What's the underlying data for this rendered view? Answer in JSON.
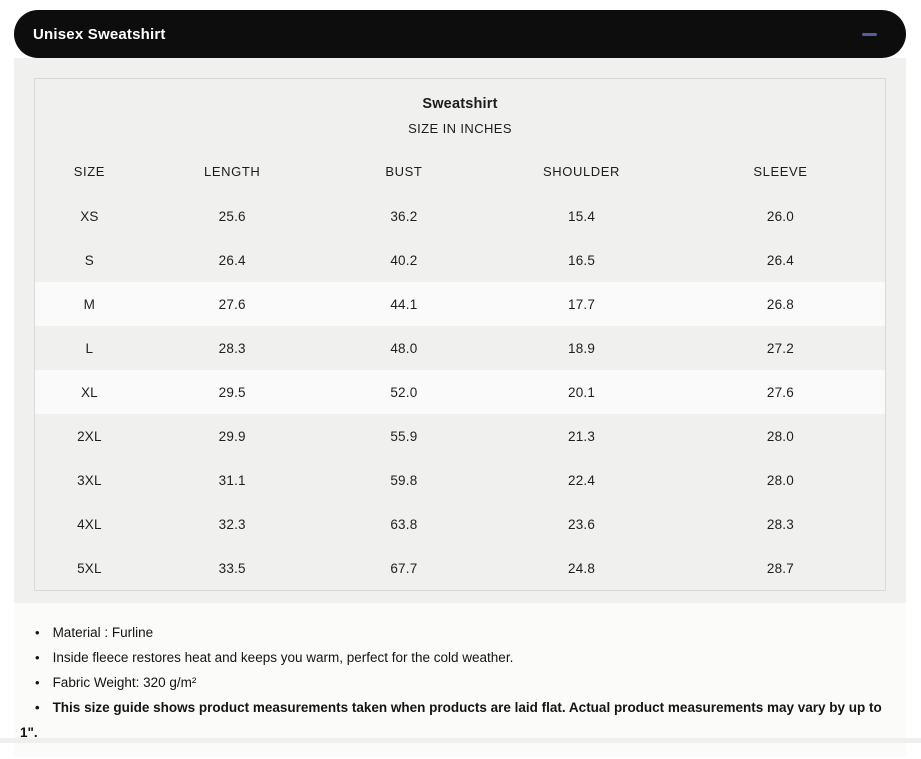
{
  "accordion": {
    "title": "Unisex Sweatshirt"
  },
  "icons": {
    "collapse": "minus-icon"
  },
  "size_chart": {
    "title": "Sweatshirt",
    "subtitle": "SIZE IN INCHES",
    "columns": [
      "SIZE",
      "LENGTH",
      "BUST",
      "SHOULDER",
      "SLEEVE"
    ],
    "rows": [
      {
        "cells": [
          "XS",
          "25.6",
          "36.2",
          "15.4",
          "26.0"
        ],
        "highlighted": false
      },
      {
        "cells": [
          "S",
          "26.4",
          "40.2",
          "16.5",
          "26.4"
        ],
        "highlighted": false
      },
      {
        "cells": [
          "M",
          "27.6",
          "44.1",
          "17.7",
          "26.8"
        ],
        "highlighted": true
      },
      {
        "cells": [
          "L",
          "28.3",
          "48.0",
          "18.9",
          "27.2"
        ],
        "highlighted": false
      },
      {
        "cells": [
          "XL",
          "29.5",
          "52.0",
          "20.1",
          "27.6"
        ],
        "highlighted": true
      },
      {
        "cells": [
          "2XL",
          "29.9",
          "55.9",
          "21.3",
          "28.0"
        ],
        "highlighted": false
      },
      {
        "cells": [
          "3XL",
          "31.1",
          "59.8",
          "22.4",
          "28.0"
        ],
        "highlighted": false
      },
      {
        "cells": [
          "4XL",
          "32.3",
          "63.8",
          "23.6",
          "28.3"
        ],
        "highlighted": false
      },
      {
        "cells": [
          "5XL",
          "33.5",
          "67.7",
          "24.8",
          "28.7"
        ],
        "highlighted": false
      }
    ]
  },
  "notes": [
    {
      "text": "Material : Furline",
      "bold": false
    },
    {
      "text": "Inside fleece restores heat and keeps you warm, perfect for the cold weather.",
      "bold": false
    },
    {
      "text": "Fabric Weight: 320 g/m²",
      "bold": false
    },
    {
      "text": "This size guide shows product measurements taken when products are laid flat. Actual product measurements may vary by up to 1\".",
      "bold": true
    }
  ],
  "colors": {
    "header_bg": "#0d0d0d",
    "collapse_accent": "#5b5a9b",
    "table_bg": "#f0f0ef",
    "stripe_bg": "#fafafa"
  }
}
